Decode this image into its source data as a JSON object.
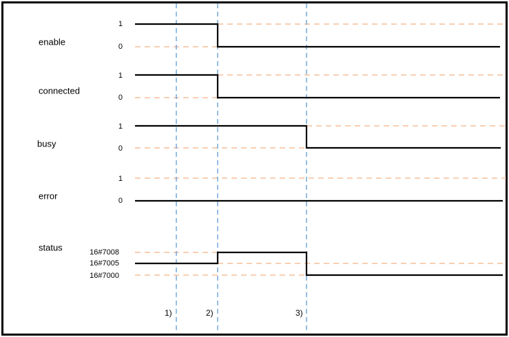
{
  "signals": [
    {
      "name": "enable",
      "levels": [
        "1",
        "0"
      ]
    },
    {
      "name": "connected",
      "levels": [
        "1",
        "0"
      ]
    },
    {
      "name": "busy",
      "levels": [
        "1",
        "0"
      ]
    },
    {
      "name": "error",
      "levels": [
        "1",
        "0"
      ]
    },
    {
      "name": "status",
      "levels": [
        "16#7008",
        "16#7005",
        "16#7000"
      ]
    }
  ],
  "markers": [
    "1)",
    "2)",
    "3)"
  ]
}
